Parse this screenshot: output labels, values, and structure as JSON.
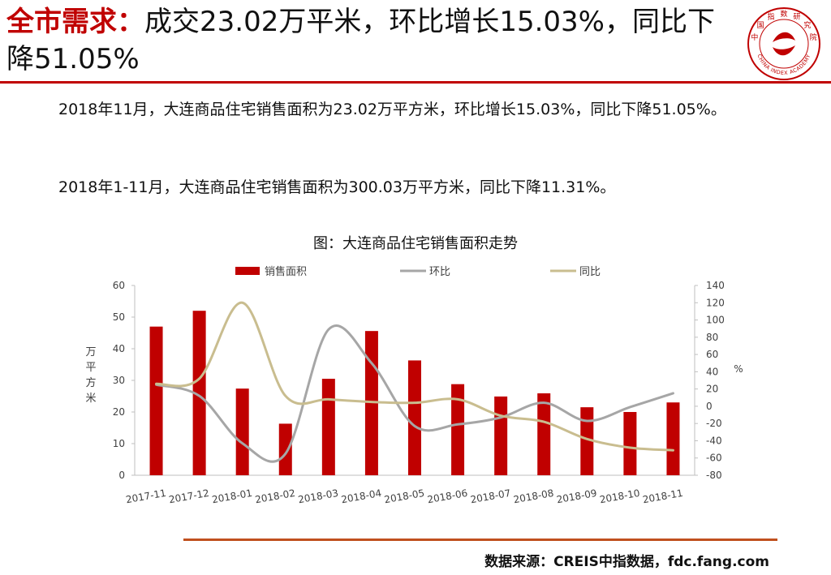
{
  "header": {
    "keyword": "全市需求：",
    "title_rest": "成交23.02万平米，环比增长15.03%，同比下降51.05%"
  },
  "logo": {
    "icon": "china-index-academy-seal-icon",
    "text": "CHINA INDEX ACADEMY",
    "chars": [
      "中",
      "国",
      "指",
      "数",
      "研",
      "究",
      "院"
    ],
    "color": "#c00000"
  },
  "body": {
    "para1": "2018年11月，大连商品住宅销售面积为23.02万平方米，环比增长15.03%，同比下降51.05%。",
    "para2": "2018年1-11月，大连商品住宅销售面积为300.03万平方米，同比下降11.31%。"
  },
  "chart_title": "图：大连商品住宅销售面积走势",
  "chart_data": {
    "type": "bar",
    "categories": [
      "2017-11",
      "2017-12",
      "2018-01",
      "2018-02",
      "2018-03",
      "2018-04",
      "2018-05",
      "2018-06",
      "2018-07",
      "2018-08",
      "2018-09",
      "2018-10",
      "2018-11"
    ],
    "series": [
      {
        "name": "销售面积",
        "type": "bar",
        "axis": "left",
        "color": "#c00000",
        "values": [
          47,
          52,
          27.4,
          16.3,
          30.5,
          45.6,
          36.3,
          28.8,
          24.9,
          25.9,
          21.5,
          20.0,
          23.02
        ]
      },
      {
        "name": "环比",
        "type": "line",
        "axis": "right",
        "color": "#a6a6a6",
        "values": [
          25,
          12,
          -43,
          -55,
          89,
          50,
          -23,
          -21,
          -13,
          4,
          -17,
          -1,
          15.03
        ]
      },
      {
        "name": "同比",
        "type": "line",
        "axis": "right",
        "color": "#c9bd8f",
        "values": [
          26,
          32,
          120,
          12,
          8,
          5,
          4,
          8,
          -11,
          -18,
          -38,
          -48,
          -51.05
        ]
      }
    ],
    "y_left": {
      "label": "万平方米",
      "min": 0,
      "max": 60,
      "step": 10
    },
    "y_right": {
      "label": "%",
      "min": -80,
      "max": 140,
      "step": 20
    },
    "legend_position": "top",
    "grid": false
  },
  "source": "数据来源：CREIS中指数据，fdc.fang.com"
}
